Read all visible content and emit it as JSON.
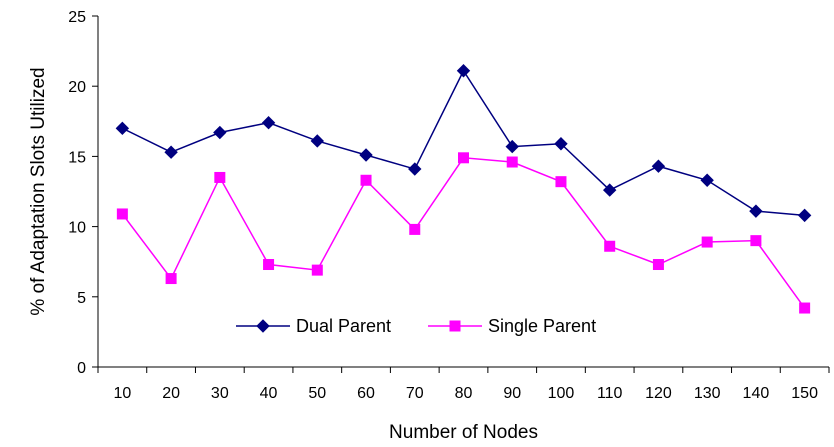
{
  "chart_data": {
    "type": "line",
    "xlabel": "Number of Nodes",
    "ylabel": "% of Adaptation Slots Utilized",
    "categories": [
      "10",
      "20",
      "30",
      "40",
      "50",
      "60",
      "70",
      "80",
      "90",
      "100",
      "110",
      "120",
      "130",
      "140",
      "150"
    ],
    "ylim": [
      0,
      25
    ],
    "yticks": [
      0,
      5,
      10,
      15,
      20,
      25
    ],
    "grid": false,
    "legend": "bottom-center inside plot",
    "series": [
      {
        "name": "Dual Parent",
        "color": "#000080",
        "marker": "diamond",
        "values": [
          17.0,
          15.3,
          16.7,
          17.4,
          16.1,
          15.1,
          14.1,
          21.1,
          15.7,
          15.9,
          12.6,
          14.3,
          13.3,
          11.1,
          10.8
        ]
      },
      {
        "name": "Single Parent",
        "color": "#ff00ff",
        "marker": "square",
        "values": [
          10.9,
          6.3,
          13.5,
          7.3,
          6.9,
          13.3,
          9.8,
          14.9,
          14.6,
          13.2,
          8.6,
          7.3,
          8.9,
          9.0,
          4.2
        ]
      }
    ]
  }
}
